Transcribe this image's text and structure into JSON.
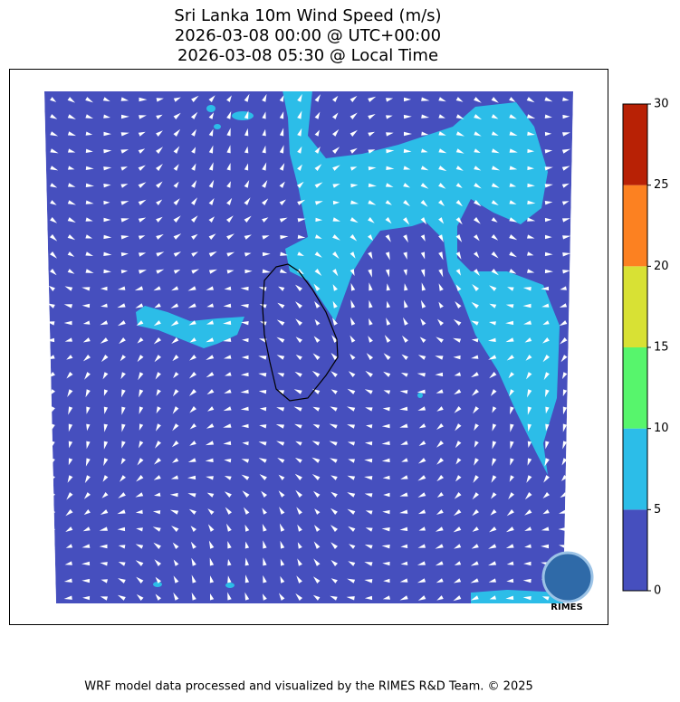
{
  "map": {
    "title_lines": [
      "Sri Lanka 10m Wind Speed (m/s)",
      "2026-03-08 00:00 @ UTC+00:00",
      "2026-03-08 05:30 @ Local Time"
    ],
    "colorbar": {
      "ticks": [
        0,
        5,
        10,
        15,
        20,
        25,
        30
      ],
      "colors": [
        "#464fbe",
        "#2cbde8",
        "#57f56c",
        "#d8e134",
        "#fc8121",
        "#b82105"
      ]
    },
    "logo": "RIMES",
    "footer": "WRF model data processed and visualized by the RIMES R&D Team. © 2025"
  }
}
